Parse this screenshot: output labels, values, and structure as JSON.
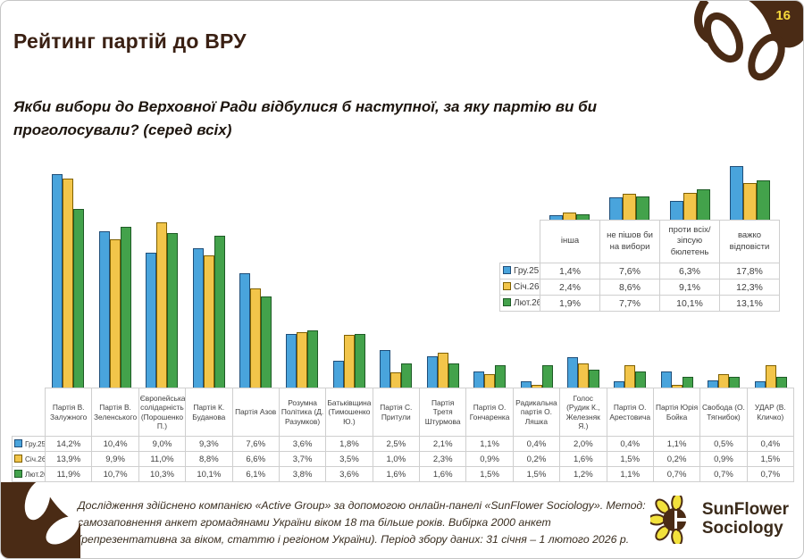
{
  "page_number": "16",
  "title": "Рейтинг партій до ВРУ",
  "subtitle": "Якби вибори до Верховної Ради відбулися б наступної, за яку партію ви би проголосували? (серед всіх)",
  "colors": {
    "series_fill": [
      "#49a4dc",
      "#f2c54a",
      "#43a24b"
    ],
    "series_border": [
      "#1f4e79",
      "#7f6000",
      "#1e5b26"
    ],
    "brown_decor": "#4a2b15",
    "page_number_yellow": "#f6d83b",
    "title_brown": "#3a2013"
  },
  "chart_data": {
    "type": "bar",
    "title": "Рейтинг партій до ВРУ",
    "legend_position": "table-left-column",
    "grid": false,
    "series_names": [
      "Гру.25",
      "Січ.26",
      "Лют.26"
    ],
    "main": {
      "categories": [
        "Партія В. Залужного",
        "Партія В. Зеленського",
        "Європейська солідарність (Порошенко П.)",
        "Партія К. Буданова",
        "Партія Азов",
        "Розумна Політика (Д. Разумков)",
        "Батьківщина (Тимошенко Ю.)",
        "Партія С. Притули",
        "Партія Третя Штурмова",
        "Партія О. Гончаренка",
        "Радикальна партія О. Ляшка",
        "Голос (Рудик К., Железняк Я.)",
        "Партія О. Арестовича",
        "Партія Юрія Бойка",
        "Свобода (О. Тягнибок)",
        "УДАР (В. Кличко)"
      ],
      "series": [
        {
          "name": "Гру.25",
          "values": [
            14.2,
            10.4,
            9.0,
            9.3,
            7.6,
            3.6,
            1.8,
            2.5,
            2.1,
            1.1,
            0.4,
            2.0,
            0.4,
            1.1,
            0.5,
            0.4
          ]
        },
        {
          "name": "Січ.26",
          "values": [
            13.9,
            9.9,
            11.0,
            8.8,
            6.6,
            3.7,
            3.5,
            1.0,
            2.3,
            0.9,
            0.2,
            1.6,
            1.5,
            0.2,
            0.9,
            1.5
          ]
        },
        {
          "name": "Лют.26",
          "values": [
            11.9,
            10.7,
            10.3,
            10.1,
            6.1,
            3.8,
            3.6,
            1.6,
            1.6,
            1.5,
            1.5,
            1.2,
            1.1,
            0.7,
            0.7,
            0.7
          ]
        }
      ]
    },
    "inset": {
      "categories": [
        "інша",
        "не пішов би на вибори",
        "проти всіх/зіпсую бюлетень",
        "важко відповісти"
      ],
      "series": [
        {
          "name": "Гру.25",
          "values": [
            1.4,
            7.6,
            6.3,
            17.8
          ]
        },
        {
          "name": "Січ.26",
          "values": [
            2.4,
            8.6,
            9.1,
            12.3
          ]
        },
        {
          "name": "Лют.26",
          "values": [
            1.9,
            7.7,
            10.1,
            13.1
          ]
        }
      ]
    },
    "value_format": "percent-comma"
  },
  "footer": {
    "source_text": "Дослідження здійснено компанією «Active Group» за допомогою онлайн-панелі «SunFlower Sociology». Метод: самозаповнення анкет громадянами України віком 18 та більше років. Вибірка 2000 анкет (репрезентативна за віком, статтю і регіоном України). Період збору даних: 31 січня – 1 лютого 2026 р.",
    "logo_line1": "SunFlower",
    "logo_line2": "Sociology"
  }
}
